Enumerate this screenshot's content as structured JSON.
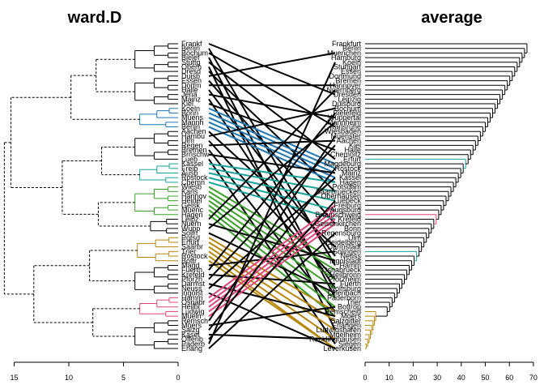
{
  "chart_data": {
    "type": "tanglegram",
    "left": {
      "title": "ward.D",
      "xlim": [
        15,
        0
      ],
      "ticks": [
        15,
        10,
        5,
        0
      ],
      "labels": [
        "Frankf",
        "Berlin",
        "Bochum",
        "Bielef",
        "Stuttg",
        "Oberh",
        "Dresd",
        "Duisb",
        "Essen",
        "Dortm",
        "Halle",
        "Jena",
        "Mainz",
        "Kiel",
        "Koeln",
        "Bonn",
        "Muens",
        "Mannh",
        "Berlin",
        "Aachen",
        "Hambu",
        "Ulm",
        "Regen",
        "Bremen",
        "Brnschw",
        "Lueb",
        "Kassel",
        "Freib",
        "Ausb",
        "Rostock",
        "Chemn",
        "Wiesb",
        "Karls",
        "Hannov",
        "Heidel",
        "Gelsk",
        "Muenc",
        "Hagen",
        "Leipz",
        "Nuern",
        "Wupp",
        "Solin",
        "Potsd",
        "Erfurt",
        "Saarbr",
        "Trier",
        "Rostock",
        "Bottr",
        "Magd",
        "Fuerth",
        "Krefeld",
        "Pforzh",
        "Darmst",
        "Neuss",
        "Ingolst",
        "Hamm",
        "Osnabr",
        "Heilbr",
        "Ludwig",
        "Mueln",
        "Remsch",
        "Moers",
        "Salzg",
        "Kasel",
        "Offenb",
        "Paderb",
        "Erlang"
      ],
      "branch_colors": [
        "#000000",
        "#1f77b4",
        "#18a39a",
        "#3aa02a",
        "#b8860b",
        "#e0457b"
      ]
    },
    "right": {
      "title": "average",
      "xlim": [
        0,
        70
      ],
      "ticks": [
        0,
        10,
        20,
        30,
        40,
        50,
        60,
        70
      ],
      "labels": [
        "Frankfurt",
        "Berlin",
        "Muenchen",
        "Hamburg",
        "Koeln",
        "Stuttgart",
        "Essen",
        "Dortmund",
        "Bremen",
        "Hannover",
        "Nuernberg",
        "Dresden",
        "Leipzig",
        "Duisburg",
        "Bochum",
        "Bielefeld",
        "Wuppertal",
        "Mannheim",
        "Karlsruhe",
        "Wiesbaden",
        "Muenster",
        "Aachen",
        "Kiel",
        "Halle",
        "Chemnitz",
        "Erfurt",
        "Magdeburg",
        "Rostock",
        "Mainz",
        "Kassel",
        "Hagen",
        "Potsdam",
        "Saarbruecken",
        "Oberhausen",
        "Luebeck",
        "Freiburg",
        "Augsburg",
        "Braunschweig",
        "Krefeld",
        "Gelsenkirchen",
        "Bonn",
        "Regensburg",
        "Ulm",
        "Heidelberg",
        "Darmstadt",
        "Solingen",
        "Neuss",
        "Ingolstadt",
        "Hamm",
        "Osnabrueck",
        "Heilbronn",
        "Pforzheim",
        "Fuerth",
        "Wolfsburg",
        "Offenbach",
        "Paderborn",
        "Trier",
        "Bottrop",
        "Remscheid",
        "Moers",
        "Salzgitter",
        "Erlangen",
        "Ludwigshafen",
        "Muelheim",
        "Recklinghausen",
        "Siegen",
        "Leverkusen"
      ]
    }
  }
}
